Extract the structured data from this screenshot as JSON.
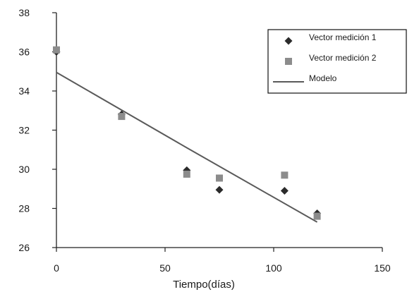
{
  "chart_data": {
    "type": "scatter",
    "title": "",
    "xlabel": "Tiempo(días)",
    "ylabel": "",
    "xlim": [
      0,
      150
    ],
    "ylim": [
      26,
      38
    ],
    "xticks": [
      0,
      50,
      100,
      150
    ],
    "yticks": [
      26,
      28,
      30,
      32,
      34,
      36,
      38
    ],
    "grid": false,
    "legend_position": "top-right",
    "series": [
      {
        "name": "Vector medición 1",
        "kind": "scatter",
        "marker": "diamond",
        "color": "#2b2b2b",
        "points": [
          [
            0,
            36.0
          ],
          [
            30,
            32.8
          ],
          [
            60,
            29.95
          ],
          [
            75,
            28.95
          ],
          [
            105,
            28.9
          ],
          [
            120,
            27.75
          ]
        ]
      },
      {
        "name": "Vector medición 2",
        "kind": "scatter",
        "marker": "square",
        "color": "#8c8c8c",
        "points": [
          [
            0,
            36.1
          ],
          [
            30,
            32.7
          ],
          [
            60,
            29.75
          ],
          [
            75,
            29.55
          ],
          [
            105,
            29.7
          ],
          [
            120,
            27.6
          ]
        ]
      },
      {
        "name": "Modelo",
        "kind": "line",
        "color": "#5a5a5a",
        "points": [
          [
            0,
            34.95
          ],
          [
            60,
            31.1
          ],
          [
            120,
            27.3
          ]
        ]
      }
    ]
  }
}
